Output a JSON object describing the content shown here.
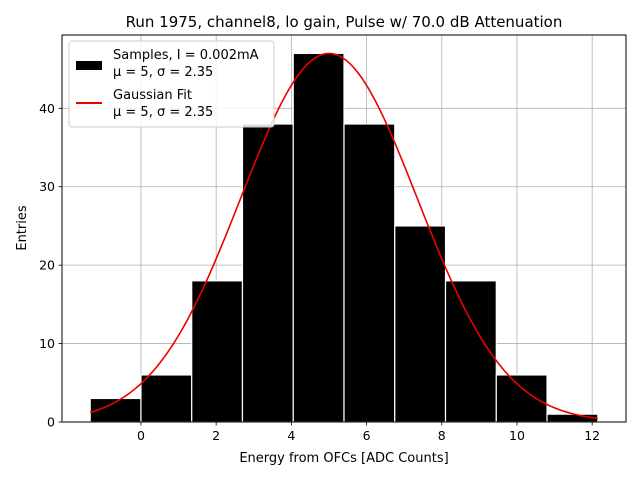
{
  "chart_data": {
    "type": "bar",
    "title": "Run 1975, channel8, lo gain, Pulse w/ 70.0 dB Attenuation",
    "xlabel": "Energy from OFCs [ADC Counts]",
    "ylabel": "Entries",
    "xlim": [
      -2.1,
      12.9
    ],
    "ylim": [
      0,
      49.35
    ],
    "grid": true,
    "x_ticks": [
      0,
      2,
      4,
      6,
      8,
      10,
      12
    ],
    "y_ticks": [
      0,
      10,
      20,
      30,
      40
    ],
    "bin_edges": [
      -1.35,
      0.0,
      1.35,
      2.7,
      4.05,
      5.4,
      6.75,
      8.1,
      9.45,
      10.8,
      12.15
    ],
    "values": [
      3,
      6,
      18,
      38,
      47,
      38,
      25,
      18,
      6,
      1
    ],
    "bar_color": "#000000",
    "fit": {
      "mu": 5,
      "sigma": 2.35,
      "amplitude": 47,
      "x_range": [
        -1.35,
        12.15
      ],
      "color": "#ee0000"
    },
    "legend": {
      "location": "upper left",
      "entries": [
        {
          "line1": "Samples, I = 0.002mA",
          "line2": "μ = 5, σ = 2.35",
          "kind": "patch",
          "color": "#000000"
        },
        {
          "line1": "Gaussian Fit",
          "line2": "μ = 5, σ = 2.35",
          "kind": "line",
          "color": "#ee0000"
        }
      ]
    }
  }
}
